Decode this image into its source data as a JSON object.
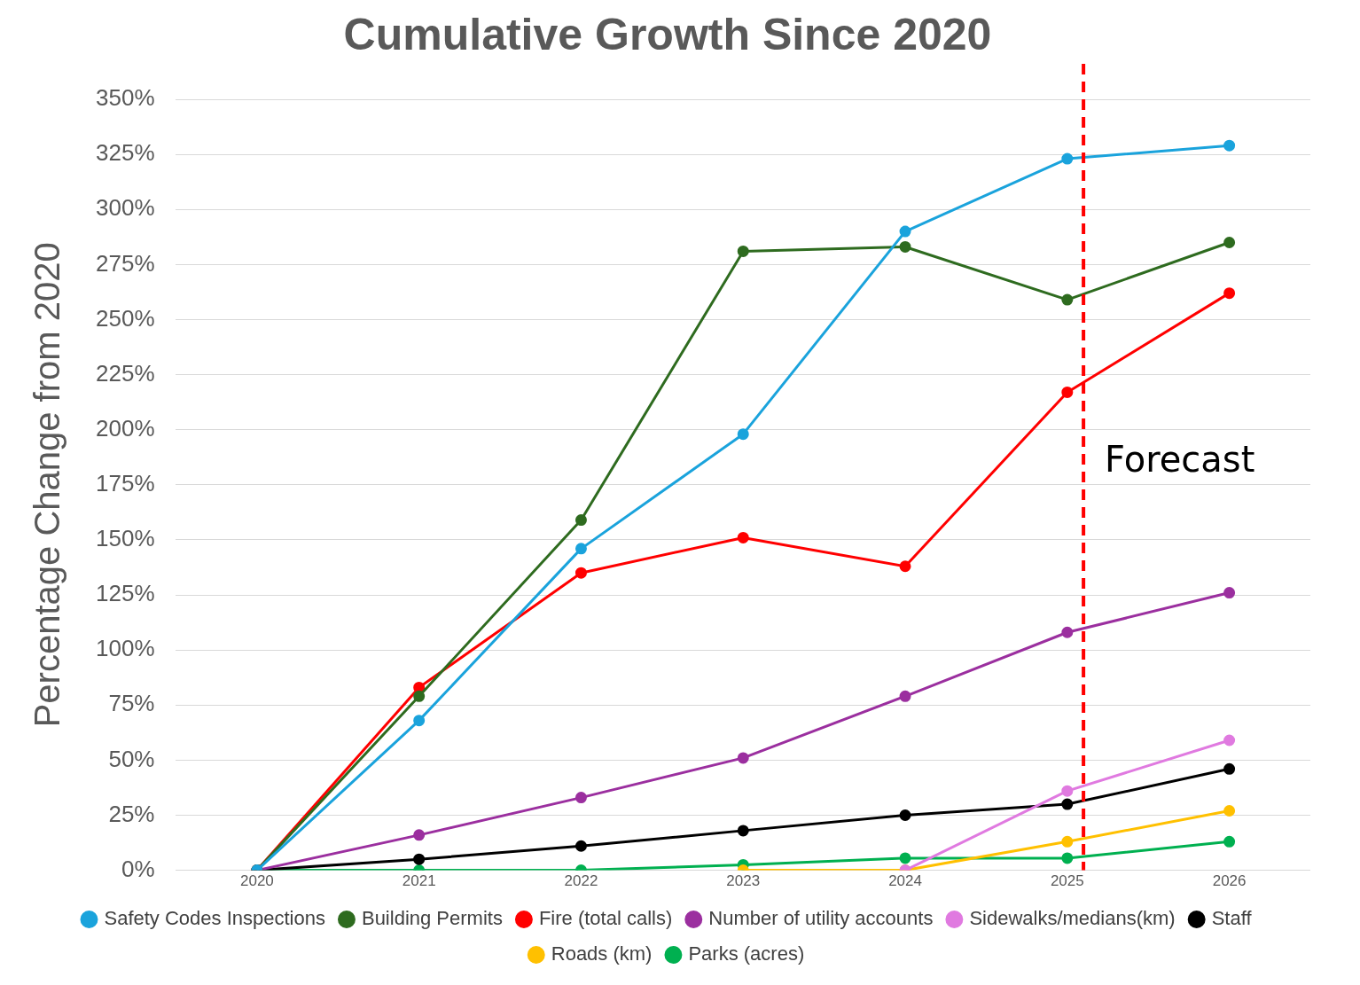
{
  "chart_data": {
    "type": "line",
    "title": "Cumulative Growth Since 2020",
    "ylabel": "Percentage Change from 2020",
    "x": [
      2020,
      2021,
      2022,
      2023,
      2024,
      2025,
      2026
    ],
    "xlim": [
      2019.5,
      2026.5
    ],
    "xticks": [
      2020,
      2021,
      2022,
      2023,
      2024,
      2025,
      2026
    ],
    "ylim": [
      0,
      350
    ],
    "yticks": [
      {
        "value": 0,
        "label": "0%"
      },
      {
        "value": 25,
        "label": "25%"
      },
      {
        "value": 50,
        "label": "50%"
      },
      {
        "value": 75,
        "label": "75%"
      },
      {
        "value": 100,
        "label": "100%"
      },
      {
        "value": 125,
        "label": "125%"
      },
      {
        "value": 150,
        "label": "150%"
      },
      {
        "value": 175,
        "label": "175%"
      },
      {
        "value": 200,
        "label": "200%"
      },
      {
        "value": 225,
        "label": "225%"
      },
      {
        "value": 250,
        "label": "250%"
      },
      {
        "value": 275,
        "label": "275%"
      },
      {
        "value": 300,
        "label": "300%"
      },
      {
        "value": 325,
        "label": "325%"
      },
      {
        "value": 350,
        "label": "350%"
      }
    ],
    "series": [
      {
        "name": "Safety Codes Inspections",
        "color": "#1aa3dc",
        "values": [
          0,
          68,
          146,
          198,
          290,
          323,
          329
        ]
      },
      {
        "name": "Building Permits",
        "color": "#2e6b1f",
        "values": [
          0,
          79,
          159,
          281,
          283,
          259,
          285
        ]
      },
      {
        "name": "Fire (total calls)",
        "color": "#ff0000",
        "values": [
          0,
          83,
          135,
          151,
          138,
          217,
          262
        ]
      },
      {
        "name": "Number of utility accounts",
        "color": "#9b2f9f",
        "values": [
          0,
          16,
          33,
          51,
          79,
          108,
          126
        ]
      },
      {
        "name": "Sidewalks/medians(km)",
        "color": "#e07ae0",
        "values": [
          null,
          null,
          null,
          null,
          0,
          36,
          59
        ]
      },
      {
        "name": "Staff",
        "color": "#000000",
        "values": [
          0,
          5,
          11,
          18,
          25,
          30,
          46
        ]
      },
      {
        "name": "Roads (km)",
        "color": "#ffc000",
        "values": [
          null,
          null,
          null,
          0,
          0,
          13,
          27
        ]
      },
      {
        "name": "Parks (acres)",
        "color": "#00b050",
        "values": [
          0,
          0,
          0,
          2.5,
          5.5,
          5.5,
          13
        ]
      }
    ],
    "ref_lines": [
      {
        "axis": "x",
        "value": 2025.1,
        "label": "Forecast",
        "color": "#ff0000",
        "line_style": "dashed"
      }
    ],
    "grid": "y",
    "legend": "bottom",
    "marker": "circle",
    "line_style": "solid"
  }
}
